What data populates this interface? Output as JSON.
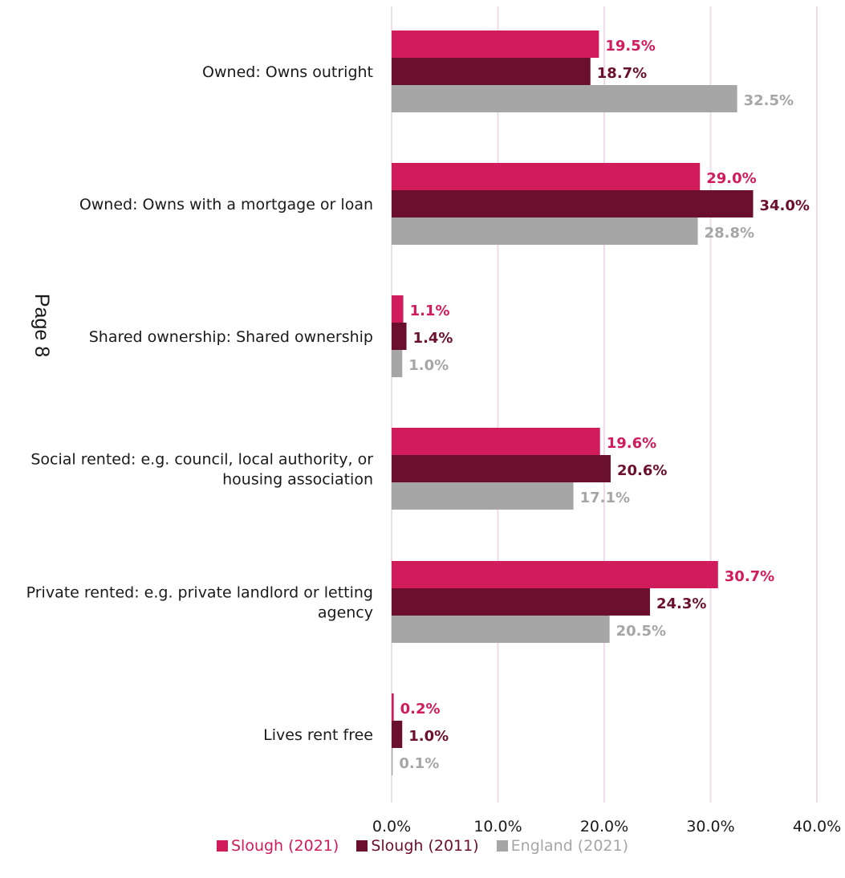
{
  "page_marker": "Page 8",
  "chart_data": {
    "type": "bar",
    "orientation": "horizontal",
    "categories": [
      [
        "Owned: Owns outright"
      ],
      [
        "Owned: Owns with a mortgage or loan"
      ],
      [
        "Shared ownership: Shared ownership"
      ],
      [
        "Social rented: e.g. council, local authority, or",
        "housing association"
      ],
      [
        "Private rented: e.g. private landlord or letting",
        "agency"
      ],
      [
        "Lives rent free"
      ]
    ],
    "series": [
      {
        "name": "Slough (2021)",
        "color": "#d01c5b",
        "values": [
          19.5,
          29.0,
          1.1,
          19.6,
          30.7,
          0.2
        ],
        "labels": [
          "19.5%",
          "29.0%",
          "1.1%",
          "19.6%",
          "30.7%",
          "0.2%"
        ]
      },
      {
        "name": "Slough (2011)",
        "color": "#6b0f2e",
        "values": [
          18.7,
          34.0,
          1.4,
          20.6,
          24.3,
          1.0
        ],
        "labels": [
          "18.7%",
          "34.0%",
          "1.4%",
          "20.6%",
          "24.3%",
          "1.0%"
        ]
      },
      {
        "name": "England (2021)",
        "color": "#a6a6a6",
        "values": [
          32.5,
          28.8,
          1.0,
          17.1,
          20.5,
          0.1
        ],
        "labels": [
          "32.5%",
          "28.8%",
          "1.0%",
          "17.1%",
          "20.5%",
          "0.1%"
        ]
      }
    ],
    "xlim": [
      0,
      40
    ],
    "xticks": [
      0,
      10,
      20,
      30,
      40
    ],
    "xtick_labels": [
      "0.0%",
      "10.0%",
      "20.0%",
      "30.0%",
      "40.0%"
    ],
    "grid": "vertical",
    "legend_position": "bottom",
    "xlabel": "",
    "ylabel": "",
    "title": ""
  }
}
